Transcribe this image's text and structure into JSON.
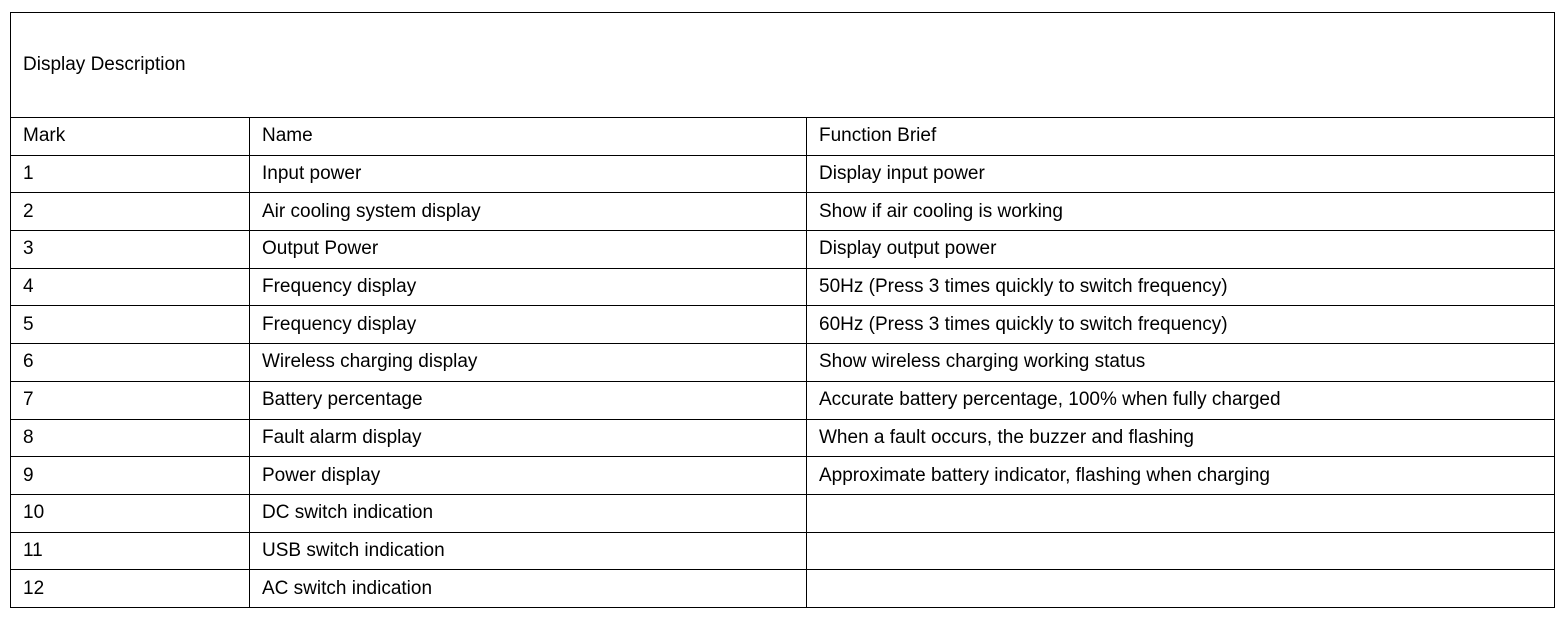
{
  "title": "Display Description",
  "headers": [
    "Mark",
    "Name",
    "Function Brief"
  ],
  "rows": [
    [
      "1",
      "Input power",
      "Display input power"
    ],
    [
      "2",
      "Air cooling system display",
      "Show if air cooling is working"
    ],
    [
      "3",
      "Output Power",
      "Display output power"
    ],
    [
      "4",
      "Frequency display",
      "50Hz (Press 3 times quickly to switch frequency)"
    ],
    [
      "5",
      "Frequency display",
      "60Hz (Press 3 times quickly to switch frequency)"
    ],
    [
      "6",
      "Wireless charging display",
      "Show wireless charging working status"
    ],
    [
      "7",
      "Battery percentage",
      "Accurate battery percentage, 100% when fully charged"
    ],
    [
      "8",
      "Fault alarm display",
      "When a fault occurs, the buzzer and flashing"
    ],
    [
      "9",
      "Power display",
      "Approximate battery indicator, flashing when charging"
    ],
    [
      "10",
      "DC switch indication",
      ""
    ],
    [
      "11",
      "USB switch indication",
      ""
    ],
    [
      "12",
      "AC switch indication",
      ""
    ]
  ]
}
